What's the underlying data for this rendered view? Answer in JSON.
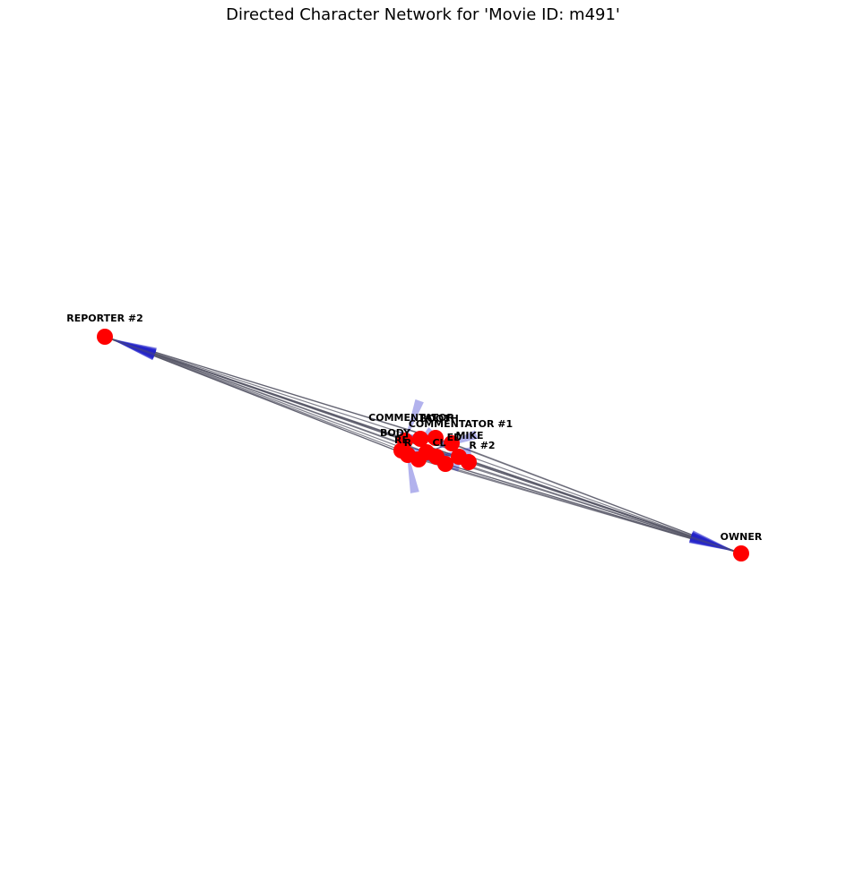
{
  "title": "Directed Character Network for 'Movie ID: m491'",
  "colors": {
    "node": "#ff0000",
    "edge": "#555566",
    "arrow": "#2222cc"
  },
  "nodes": [
    {
      "id": "reporter2",
      "label": "REPORTER #2"
    },
    {
      "id": "owner",
      "label": "OWNER"
    },
    {
      "id": "commentator",
      "label": "COMMENTATOR"
    },
    {
      "id": "commentator1",
      "label": "COMMENTATOR #1"
    },
    {
      "id": "booth",
      "label": "BOOTH"
    },
    {
      "id": "body",
      "label": "BODY"
    },
    {
      "id": "mike",
      "label": "MIKE"
    },
    {
      "id": "r2",
      "label": "R #2"
    },
    {
      "id": "cl",
      "label": "CL"
    },
    {
      "id": "r1",
      "label": "R"
    },
    {
      "id": "ed",
      "label": "ED"
    },
    {
      "id": "re",
      "label": "RE"
    },
    {
      "id": "n13",
      "label": ""
    },
    {
      "id": "n14",
      "label": ""
    }
  ],
  "edges": [
    [
      "reporter2",
      "owner"
    ],
    [
      "owner",
      "reporter2"
    ],
    [
      "commentator",
      "reporter2"
    ],
    [
      "commentator",
      "owner"
    ],
    [
      "commentator1",
      "reporter2"
    ],
    [
      "commentator1",
      "owner"
    ],
    [
      "booth",
      "reporter2"
    ],
    [
      "booth",
      "owner"
    ],
    [
      "body",
      "reporter2"
    ],
    [
      "body",
      "owner"
    ],
    [
      "mike",
      "reporter2"
    ],
    [
      "mike",
      "owner"
    ],
    [
      "r2",
      "reporter2"
    ],
    [
      "r2",
      "owner"
    ],
    [
      "cl",
      "reporter2"
    ],
    [
      "cl",
      "owner"
    ],
    [
      "r1",
      "reporter2"
    ],
    [
      "r1",
      "owner"
    ],
    [
      "ed",
      "reporter2"
    ],
    [
      "ed",
      "owner"
    ],
    [
      "re",
      "reporter2"
    ],
    [
      "re",
      "owner"
    ],
    [
      "n13",
      "reporter2"
    ],
    [
      "n13",
      "owner"
    ],
    [
      "n14",
      "reporter2"
    ],
    [
      "n14",
      "owner"
    ],
    [
      "commentator",
      "body"
    ],
    [
      "booth",
      "mike"
    ],
    [
      "commentator1",
      "r2"
    ],
    [
      "cl",
      "re"
    ],
    [
      "ed",
      "r1"
    ],
    [
      "body",
      "n13"
    ],
    [
      "mike",
      "n14"
    ],
    [
      "re",
      "commentator"
    ]
  ]
}
